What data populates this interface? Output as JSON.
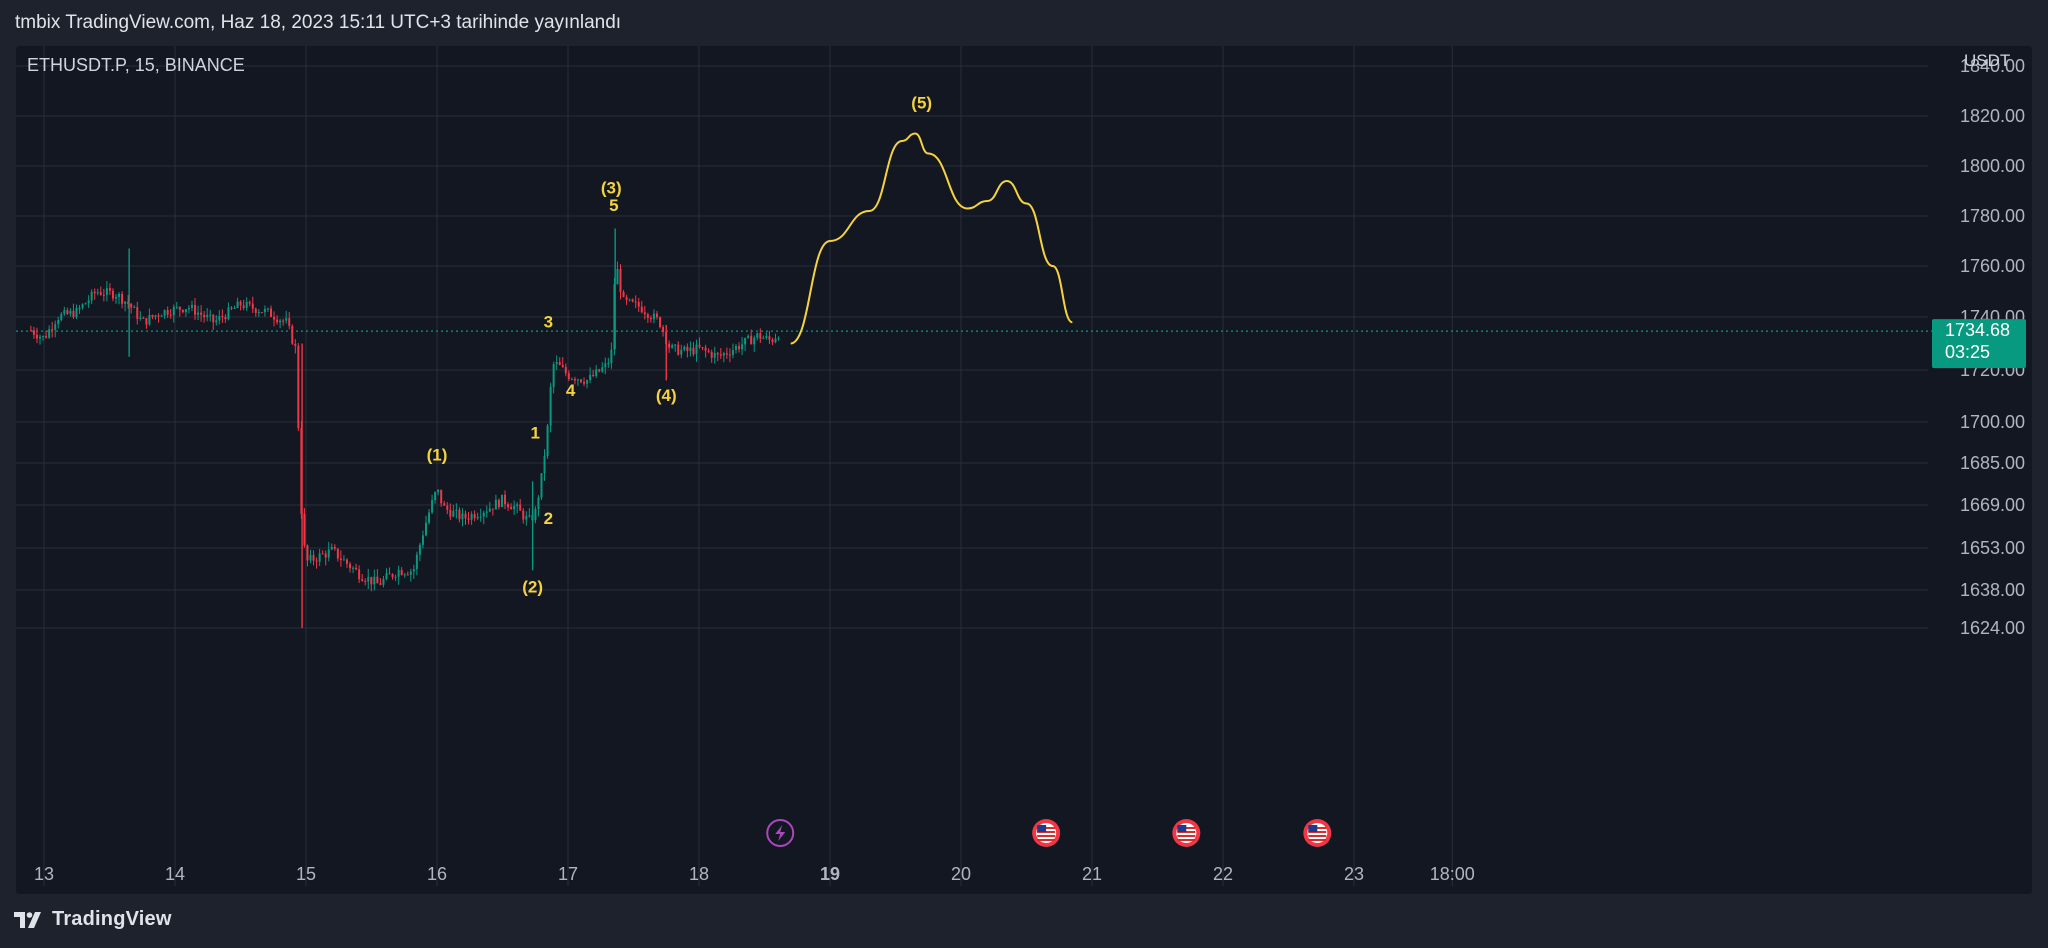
{
  "header": {
    "published_text": "tmbix TradingView.com, Haz 18, 2023 15:11 UTC+3 tarihinde yayınlandı"
  },
  "chart": {
    "symbol_label": "ETHUSDT.P, 15, BINANCE",
    "currency_label": "USDT"
  },
  "price_badge": {
    "price": "1734.68",
    "countdown": "03:25",
    "color": "#089981"
  },
  "footer": {
    "brand": "TradingView"
  },
  "colors": {
    "up": "#089981",
    "down": "#f23645",
    "annotation": "#f5d33f",
    "grid": "#2a2e39",
    "price_line": "#089981",
    "event_lightning": "#ab47bc",
    "event_flag": "#f23645"
  },
  "chart_data": {
    "type": "candlestick",
    "title": "",
    "xlabel": "",
    "ylabel": "",
    "yunit": "USDT",
    "x_ticks": [
      "13",
      "14",
      "15",
      "16",
      "17",
      "18",
      "19",
      "20",
      "21",
      "22",
      "23",
      "18:00"
    ],
    "y_ticks": [
      "1840.00",
      "1820.00",
      "1800.00",
      "1780.00",
      "1760.00",
      "1740.00",
      "1720.00",
      "1700.00",
      "1685.00",
      "1669.00",
      "1653.00",
      "1638.00",
      "1624.00"
    ],
    "last_price": 1734.68,
    "price_path": [
      [
        "12.9",
        1735
      ],
      [
        "13.0",
        1732
      ],
      [
        "13.1",
        1740
      ],
      [
        "13.25",
        1742
      ],
      [
        "13.4",
        1750
      ],
      [
        "13.55",
        1749
      ],
      [
        "13.65",
        1745
      ],
      [
        "13.75",
        1738
      ],
      [
        "13.9",
        1742
      ],
      [
        "14.1",
        1744
      ],
      [
        "14.3",
        1738
      ],
      [
        "14.5",
        1745
      ],
      [
        "14.7",
        1742
      ],
      [
        "14.85",
        1738
      ],
      [
        "14.92",
        1728
      ],
      [
        "14.97",
        1660
      ],
      [
        "15.0",
        1648
      ],
      [
        "15.2",
        1652
      ],
      [
        "15.4",
        1644
      ],
      [
        "15.55",
        1640
      ],
      [
        "15.7",
        1645
      ],
      [
        "15.82",
        1645
      ],
      [
        "15.9",
        1660
      ],
      [
        "15.95",
        1668
      ],
      [
        "16.0",
        1675
      ],
      [
        "16.05",
        1668
      ],
      [
        "16.2",
        1664
      ],
      [
        "16.4",
        1668
      ],
      [
        "16.5",
        1671
      ],
      [
        "16.6",
        1668
      ],
      [
        "16.7",
        1663
      ],
      [
        "16.75",
        1666
      ],
      [
        "16.8",
        1680
      ],
      [
        "16.85",
        1700
      ],
      [
        "16.88",
        1722
      ],
      [
        "16.92",
        1722
      ],
      [
        "17.0",
        1718
      ],
      [
        "17.15",
        1716
      ],
      [
        "17.3",
        1722
      ],
      [
        "17.34",
        1728
      ],
      [
        "17.36",
        1763
      ],
      [
        "17.42",
        1746
      ],
      [
        "17.55",
        1744
      ],
      [
        "17.7",
        1738
      ],
      [
        "17.78",
        1728
      ],
      [
        "17.9",
        1727
      ],
      [
        "18.0",
        1728
      ],
      [
        "18.15",
        1725
      ],
      [
        "18.3",
        1729
      ],
      [
        "18.45",
        1733
      ],
      [
        "18.55",
        1731
      ],
      [
        "18.62",
        1734.68
      ]
    ],
    "projection_path": [
      [
        "18.7",
        1730
      ],
      [
        "19.0",
        1770
      ],
      [
        "19.3",
        1782
      ],
      [
        "19.55",
        1810
      ],
      [
        "19.65",
        1813
      ],
      [
        "19.75",
        1805
      ],
      [
        "20.05",
        1783
      ],
      [
        "20.2",
        1786
      ],
      [
        "20.35",
        1794
      ],
      [
        "20.5",
        1785
      ],
      [
        "20.7",
        1760
      ],
      [
        "20.85",
        1738
      ]
    ],
    "annotations": [
      {
        "label": "(1)",
        "x": "16.0",
        "y": 1686
      },
      {
        "label": "(2)",
        "x": "16.73",
        "y": 1637
      },
      {
        "label": "1",
        "x": "16.75",
        "y": 1694
      },
      {
        "label": "2",
        "x": "16.85",
        "y": 1662
      },
      {
        "label": "3",
        "x": "16.85",
        "y": 1736
      },
      {
        "label": "4",
        "x": "17.02",
        "y": 1710
      },
      {
        "label": "(3)",
        "x": "17.33",
        "y": 1789
      },
      {
        "label": "5",
        "x": "17.35",
        "y": 1782
      },
      {
        "label": "(4)",
        "x": "17.75",
        "y": 1708
      },
      {
        "label": "(5)",
        "x": "19.7",
        "y": 1823
      }
    ],
    "events": [
      {
        "type": "lightning",
        "x": "18.62"
      },
      {
        "type": "us-flag",
        "x": "20.65"
      },
      {
        "type": "us-flag",
        "x": "21.72"
      },
      {
        "type": "us-flag",
        "x": "22.72"
      }
    ]
  }
}
